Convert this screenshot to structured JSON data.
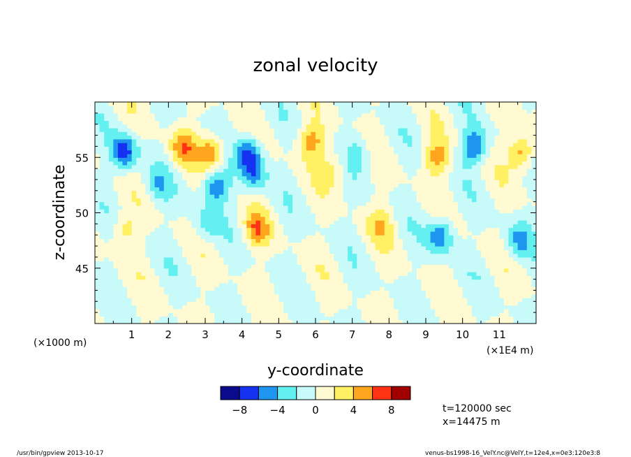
{
  "chart_data": {
    "type": "heatmap",
    "title": "zonal velocity",
    "xlabel": "y-coordinate",
    "ylabel": "z-coordinate",
    "x_units_left": "(×1000 m)",
    "x_units_right": "(×1E4 m)",
    "x_ticks": [
      "1",
      "2",
      "3",
      "4",
      "5",
      "6",
      "7",
      "8",
      "9",
      "10",
      "11"
    ],
    "y_ticks": [
      "45",
      "50",
      "55"
    ],
    "xlim": [
      0,
      12
    ],
    "ylim": [
      40,
      60
    ],
    "colorbar": {
      "levels": [
        -10,
        -8,
        -6,
        -4,
        -2,
        0,
        2,
        4,
        6,
        8,
        10
      ],
      "tick_labels": [
        "−8",
        "−4",
        "0",
        "4",
        "8"
      ],
      "tick_values": [
        -8,
        -4,
        0,
        4,
        8
      ],
      "colors": [
        "#0a0a8c",
        "#1432f0",
        "#1e96f0",
        "#64f0f0",
        "#c8fafa",
        "#fffad2",
        "#fff064",
        "#ffa51e",
        "#ff3214",
        "#a00000"
      ]
    },
    "features": [
      {
        "x": 0.8,
        "y": 55.5,
        "value": -7
      },
      {
        "x": 1.7,
        "y": 52.5,
        "value": -3
      },
      {
        "x": 2.4,
        "y": 56.0,
        "value": 5
      },
      {
        "x": 3.2,
        "y": 55.5,
        "value": 6
      },
      {
        "x": 3.3,
        "y": 52.5,
        "value": -6
      },
      {
        "x": 3.0,
        "y": 49.0,
        "value": -3
      },
      {
        "x": 4.2,
        "y": 55.5,
        "value": -6
      },
      {
        "x": 4.3,
        "y": 53.5,
        "value": -5
      },
      {
        "x": 4.4,
        "y": 48.5,
        "value": 5
      },
      {
        "x": 5.9,
        "y": 56.5,
        "value": 5
      },
      {
        "x": 6.5,
        "y": 54.0,
        "value": 3
      },
      {
        "x": 7.2,
        "y": 55.5,
        "value": -3
      },
      {
        "x": 7.8,
        "y": 49.0,
        "value": 3
      },
      {
        "x": 9.3,
        "y": 55.0,
        "value": 5
      },
      {
        "x": 9.4,
        "y": 48.0,
        "value": -6
      },
      {
        "x": 10.3,
        "y": 56.0,
        "value": -6
      },
      {
        "x": 11.6,
        "y": 55.5,
        "value": 6
      },
      {
        "x": 0.8,
        "y": 48.5,
        "value": 3
      },
      {
        "x": 11.5,
        "y": 47.5,
        "value": -4
      }
    ]
  },
  "info": {
    "time": "t=120000 sec",
    "position": "x=14475 m"
  },
  "footer": {
    "left": "/usr/bin/gpview  2013-10-17",
    "right": "venus-bs1998-16_VelY.nc@VelY,t=12e4,x=0e3:120e3:8"
  }
}
